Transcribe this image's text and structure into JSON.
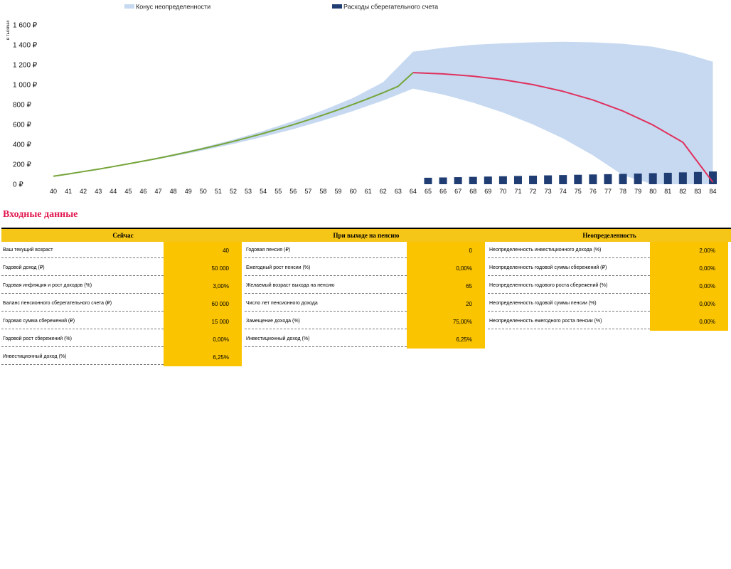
{
  "chart_data": {
    "type": "area",
    "legend": [
      {
        "label": "Конус неопределенности",
        "color": "#c6d9f1"
      },
      {
        "label": "Расходы сберегательного счета",
        "color": "#1f3d73"
      }
    ],
    "unit_label": "в тысячах",
    "y_ticks": [
      "0 ₽",
      "200 ₽",
      "400 ₽",
      "600 ₽",
      "800 ₽",
      "1 000 ₽",
      "1 200 ₽",
      "1 400 ₽",
      "1 600 ₽"
    ],
    "ylim": [
      0,
      1600
    ],
    "x": [
      40,
      41,
      42,
      43,
      44,
      45,
      46,
      47,
      48,
      49,
      50,
      51,
      52,
      53,
      54,
      55,
      56,
      57,
      58,
      59,
      60,
      61,
      62,
      63,
      64,
      65,
      66,
      67,
      68,
      69,
      70,
      71,
      72,
      73,
      74,
      75,
      76,
      77,
      78,
      79,
      80,
      81,
      82,
      83,
      84
    ],
    "series": [
      {
        "color": "#76a53a",
        "x": [
          40,
          41,
          42,
          43,
          44,
          45,
          46,
          47,
          48,
          49,
          50,
          51,
          52,
          53,
          54,
          55,
          56,
          57,
          58,
          59,
          60,
          61,
          62,
          63,
          64
        ],
        "values": [
          80,
          103,
          127,
          151,
          177,
          204,
          232,
          261,
          292,
          324,
          358,
          393,
          430,
          469,
          510,
          553,
          598,
          645,
          695,
          747,
          802,
          859,
          919,
          983,
          1121
        ]
      },
      {
        "color": "#e0315e",
        "x": [
          64,
          66,
          68,
          70,
          72,
          74,
          76,
          78,
          80,
          82,
          84
        ],
        "values": [
          1121,
          1108,
          1085,
          1050,
          1000,
          933,
          846,
          735,
          595,
          421,
          20
        ]
      }
    ],
    "cone_upper": {
      "x": [
        40,
        42,
        44,
        46,
        48,
        50,
        52,
        54,
        56,
        58,
        60,
        62,
        64,
        66,
        68,
        70,
        72,
        74,
        76,
        78,
        80,
        82,
        84
      ],
      "values": [
        80,
        127,
        180,
        237,
        300,
        370,
        448,
        535,
        633,
        743,
        866,
        1025,
        1330,
        1370,
        1400,
        1415,
        1425,
        1430,
        1425,
        1410,
        1380,
        1320,
        1230
      ]
    },
    "cone_lower": {
      "x": [
        40,
        42,
        44,
        46,
        48,
        50,
        52,
        54,
        56,
        58,
        60,
        62,
        64,
        66,
        68,
        70,
        72,
        74,
        76,
        78,
        80,
        82,
        84
      ],
      "values": [
        80,
        126,
        174,
        225,
        280,
        340,
        404,
        476,
        553,
        640,
        735,
        840,
        960,
        900,
        820,
        720,
        600,
        460,
        290,
        90,
        0,
        0,
        0
      ]
    },
    "bars": {
      "color": "#1f3d73",
      "x": [
        65,
        66,
        67,
        68,
        69,
        70,
        71,
        72,
        73,
        74,
        75,
        76,
        77,
        78,
        79,
        80,
        81,
        82,
        83,
        84
      ],
      "values": [
        65,
        68,
        71,
        74,
        77,
        80,
        83,
        86,
        89,
        92,
        95,
        98,
        101,
        104,
        107,
        111,
        115,
        119,
        123,
        128
      ]
    }
  },
  "section_title": "Входные данные",
  "columns": [
    {
      "title": "Сейчас",
      "rows": [
        {
          "label": "Ваш текущий возраст",
          "value": "40"
        },
        {
          "label": "Годовой доход (₽)",
          "value": "50 000"
        },
        {
          "label": "Годовая инфляция и рост доходов (%)",
          "value": "3,00%"
        },
        {
          "label": "Баланс пенсионного сберегательного счета (₽)",
          "value": "60 000"
        },
        {
          "label": "Годовая сумма сбережений (₽)",
          "value": "15 000"
        },
        {
          "label": "Годовой рост сбережений (%)",
          "value": "0,00%"
        },
        {
          "label": "Инвестиционный доход (%)",
          "value": "6,25%"
        }
      ]
    },
    {
      "title": "При выходе на пенсию",
      "rows": [
        {
          "label": "Годовая пенсия (₽)",
          "value": "0"
        },
        {
          "label": "Ежегодный рост пенсии (%)",
          "value": "0,00%"
        },
        {
          "label": "Желаемый возраст выхода на пенсию",
          "value": "65"
        },
        {
          "label": "Число лет пенсионного дохода",
          "value": "20"
        },
        {
          "label": "Замещение дохода (%)",
          "value": "75,00%"
        },
        {
          "label": "Инвестиционный доход (%)",
          "value": "6,25%"
        }
      ]
    },
    {
      "title": "Неопределенность",
      "rows": [
        {
          "label": "Неопределенность инвестиционного дохода (%)",
          "value": "2,00%"
        },
        {
          "label": "Неопределенность годовой суммы сбережений (₽)",
          "value": "0,00%"
        },
        {
          "label": "Неопределенность годового роста сбережений (%)",
          "value": "0,00%"
        },
        {
          "label": "Неопределенность годовой суммы пенсии (%)",
          "value": "0,00%"
        },
        {
          "label": "Неопределенность ежегодного роста пенсии (%)",
          "value": "0,00%"
        }
      ]
    }
  ]
}
